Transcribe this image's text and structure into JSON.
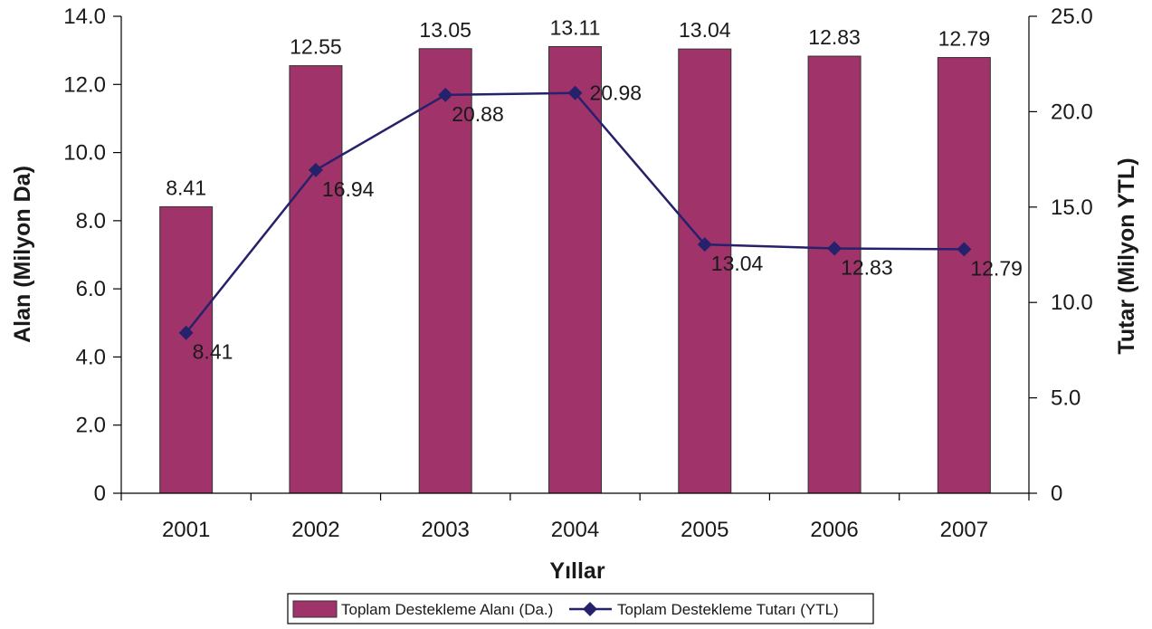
{
  "chart_data": {
    "type": "bar",
    "categories": [
      "2001",
      "2002",
      "2003",
      "2004",
      "2005",
      "2006",
      "2007"
    ],
    "series": [
      {
        "name": "Toplam Destekleme Alanı (Da.)",
        "type": "bar",
        "axis": "left",
        "values": [
          8.41,
          12.55,
          13.05,
          13.11,
          13.04,
          12.83,
          12.79
        ],
        "labels": [
          "8.41",
          "12.55",
          "13.05",
          "13.11",
          "13.04",
          "12.83",
          "12.79"
        ],
        "color": "#A0336A"
      },
      {
        "name": "Toplam Destekleme Tutarı (YTL)",
        "type": "line",
        "axis": "right",
        "values": [
          8.41,
          16.94,
          20.88,
          20.98,
          13.04,
          12.83,
          12.79
        ],
        "labels": [
          "8.41",
          "16.94",
          "20.88",
          "20.98",
          "13.04",
          "12.83",
          "12.79"
        ],
        "color": "#26216B"
      }
    ],
    "xlabel": "Yıllar",
    "ylabel": "Alan (Milyon Da)",
    "ylabel_right": "Tutar (Milyon YTL)",
    "ylim": [
      0,
      14
    ],
    "ylim_right": [
      0,
      25
    ],
    "yticks": [
      "0",
      "2.0",
      "4.0",
      "6.0",
      "8.0",
      "10.0",
      "12.0",
      "14.0"
    ],
    "yticks_right": [
      "0",
      "5.0",
      "10.0",
      "15.0",
      "20.0",
      "25.0"
    ],
    "grid": false,
    "legend_position": "bottom"
  }
}
